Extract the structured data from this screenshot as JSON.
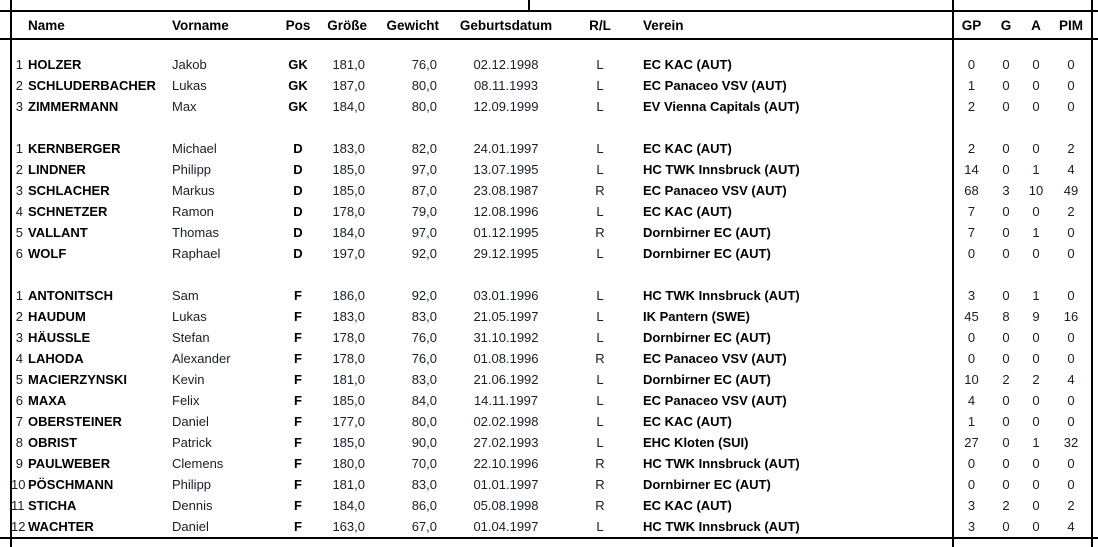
{
  "colors": {
    "border": "#000000",
    "text": "#181d29",
    "bold_text": "#000000",
    "background": "#ffffff"
  },
  "table": {
    "header": {
      "num": "",
      "name": "Name",
      "vorname": "Vorname",
      "pos": "Pos",
      "groesse": "Größe",
      "gewicht": "Gewicht",
      "geburtsdatum": "Geburtsdatum",
      "rl": "R/L",
      "verein": "Verein",
      "gp": "GP",
      "g": "G",
      "a": "A",
      "pim": "PIM"
    },
    "sections": [
      {
        "position_group": "GK",
        "rows": [
          {
            "num": "1",
            "name": "HOLZER",
            "vorname": "Jakob",
            "pos": "GK",
            "groesse": "181,0",
            "gewicht": "76,0",
            "geburtsdatum": "02.12.1998",
            "rl": "L",
            "verein": "EC KAC (AUT)",
            "gp": "0",
            "g": "0",
            "a": "0",
            "pim": "0"
          },
          {
            "num": "2",
            "name": "SCHLUDERBACHER",
            "vorname": "Lukas",
            "pos": "GK",
            "groesse": "187,0",
            "gewicht": "80,0",
            "geburtsdatum": "08.11.1993",
            "rl": "L",
            "verein": "EC Panaceo VSV (AUT)",
            "gp": "1",
            "g": "0",
            "a": "0",
            "pim": "0"
          },
          {
            "num": "3",
            "name": "ZIMMERMANN",
            "vorname": "Max",
            "pos": "GK",
            "groesse": "184,0",
            "gewicht": "80,0",
            "geburtsdatum": "12.09.1999",
            "rl": "L",
            "verein": "EV Vienna Capitals (AUT)",
            "gp": "2",
            "g": "0",
            "a": "0",
            "pim": "0"
          }
        ]
      },
      {
        "position_group": "D",
        "rows": [
          {
            "num": "1",
            "name": "KERNBERGER",
            "vorname": "Michael",
            "pos": "D",
            "groesse": "183,0",
            "gewicht": "82,0",
            "geburtsdatum": "24.01.1997",
            "rl": "L",
            "verein": "EC KAC (AUT)",
            "gp": "2",
            "g": "0",
            "a": "0",
            "pim": "2"
          },
          {
            "num": "2",
            "name": "LINDNER",
            "vorname": "Philipp",
            "pos": "D",
            "groesse": "185,0",
            "gewicht": "97,0",
            "geburtsdatum": "13.07.1995",
            "rl": "L",
            "verein": "HC TWK Innsbruck (AUT)",
            "gp": "14",
            "g": "0",
            "a": "1",
            "pim": "4"
          },
          {
            "num": "3",
            "name": "SCHLACHER",
            "vorname": "Markus",
            "pos": "D",
            "groesse": "185,0",
            "gewicht": "87,0",
            "geburtsdatum": "23.08.1987",
            "rl": "R",
            "verein": "EC Panaceo VSV (AUT)",
            "gp": "68",
            "g": "3",
            "a": "10",
            "pim": "49"
          },
          {
            "num": "4",
            "name": "SCHNETZER",
            "vorname": "Ramon",
            "pos": "D",
            "groesse": "178,0",
            "gewicht": "79,0",
            "geburtsdatum": "12.08.1996",
            "rl": "L",
            "verein": "EC KAC (AUT)",
            "gp": "7",
            "g": "0",
            "a": "0",
            "pim": "2"
          },
          {
            "num": "5",
            "name": "VALLANT",
            "vorname": "Thomas",
            "pos": "D",
            "groesse": "184,0",
            "gewicht": "97,0",
            "geburtsdatum": "01.12.1995",
            "rl": "R",
            "verein": "Dornbirner EC (AUT)",
            "gp": "7",
            "g": "0",
            "a": "1",
            "pim": "0"
          },
          {
            "num": "6",
            "name": "WOLF",
            "vorname": "Raphael",
            "pos": "D",
            "groesse": "197,0",
            "gewicht": "92,0",
            "geburtsdatum": "29.12.1995",
            "rl": "L",
            "verein": "Dornbirner EC (AUT)",
            "gp": "0",
            "g": "0",
            "a": "0",
            "pim": "0"
          }
        ]
      },
      {
        "position_group": "F",
        "rows": [
          {
            "num": "1",
            "name": "ANTONITSCH",
            "vorname": "Sam",
            "pos": "F",
            "groesse": "186,0",
            "gewicht": "92,0",
            "geburtsdatum": "03.01.1996",
            "rl": "L",
            "verein": "HC TWK Innsbruck (AUT)",
            "gp": "3",
            "g": "0",
            "a": "1",
            "pim": "0"
          },
          {
            "num": "2",
            "name": "HAUDUM",
            "vorname": "Lukas",
            "pos": "F",
            "groesse": "183,0",
            "gewicht": "83,0",
            "geburtsdatum": "21.05.1997",
            "rl": "L",
            "verein": "IK Pantern (SWE)",
            "gp": "45",
            "g": "8",
            "a": "9",
            "pim": "16"
          },
          {
            "num": "3",
            "name": "HÄUSSLE",
            "vorname": "Stefan",
            "pos": "F",
            "groesse": "178,0",
            "gewicht": "76,0",
            "geburtsdatum": "31.10.1992",
            "rl": "L",
            "verein": "Dornbirner EC (AUT)",
            "gp": "0",
            "g": "0",
            "a": "0",
            "pim": "0"
          },
          {
            "num": "4",
            "name": "LAHODA",
            "vorname": "Alexander",
            "pos": "F",
            "groesse": "178,0",
            "gewicht": "76,0",
            "geburtsdatum": "01.08.1996",
            "rl": "R",
            "verein": "EC Panaceo VSV (AUT)",
            "gp": "0",
            "g": "0",
            "a": "0",
            "pim": "0"
          },
          {
            "num": "5",
            "name": "MACIERZYNSKI",
            "vorname": "Kevin",
            "pos": "F",
            "groesse": "181,0",
            "gewicht": "83,0",
            "geburtsdatum": "21.06.1992",
            "rl": "L",
            "verein": "Dornbirner EC (AUT)",
            "gp": "10",
            "g": "2",
            "a": "2",
            "pim": "4"
          },
          {
            "num": "6",
            "name": "MAXA",
            "vorname": "Felix",
            "pos": "F",
            "groesse": "185,0",
            "gewicht": "84,0",
            "geburtsdatum": "14.11.1997",
            "rl": "L",
            "verein": "EC Panaceo VSV (AUT)",
            "gp": "4",
            "g": "0",
            "a": "0",
            "pim": "0"
          },
          {
            "num": "7",
            "name": "OBERSTEINER",
            "vorname": "Daniel",
            "pos": "F",
            "groesse": "177,0",
            "gewicht": "80,0",
            "geburtsdatum": "02.02.1998",
            "rl": "L",
            "verein": "EC KAC (AUT)",
            "gp": "1",
            "g": "0",
            "a": "0",
            "pim": "0"
          },
          {
            "num": "8",
            "name": "OBRIST",
            "vorname": "Patrick",
            "pos": "F",
            "groesse": "185,0",
            "gewicht": "90,0",
            "geburtsdatum": "27.02.1993",
            "rl": "L",
            "verein": "EHC Kloten (SUI)",
            "gp": "27",
            "g": "0",
            "a": "1",
            "pim": "32"
          },
          {
            "num": "9",
            "name": "PAULWEBER",
            "vorname": "Clemens",
            "pos": "F",
            "groesse": "180,0",
            "gewicht": "70,0",
            "geburtsdatum": "22.10.1996",
            "rl": "R",
            "verein": "HC TWK Innsbruck (AUT)",
            "gp": "0",
            "g": "0",
            "a": "0",
            "pim": "0"
          },
          {
            "num": "10",
            "name": "PÖSCHMANN",
            "vorname": "Philipp",
            "pos": "F",
            "groesse": "181,0",
            "gewicht": "83,0",
            "geburtsdatum": "01.01.1997",
            "rl": "R",
            "verein": "Dornbirner EC (AUT)",
            "gp": "0",
            "g": "0",
            "a": "0",
            "pim": "0"
          },
          {
            "num": "11",
            "name": "STICHA",
            "vorname": "Dennis",
            "pos": "F",
            "groesse": "184,0",
            "gewicht": "86,0",
            "geburtsdatum": "05.08.1998",
            "rl": "R",
            "verein": "EC KAC (AUT)",
            "gp": "3",
            "g": "2",
            "a": "0",
            "pim": "2"
          },
          {
            "num": "12",
            "name": "WACHTER",
            "vorname": "Daniel",
            "pos": "F",
            "groesse": "163,0",
            "gewicht": "67,0",
            "geburtsdatum": "01.04.1997",
            "rl": "L",
            "verein": "HC TWK Innsbruck (AUT)",
            "gp": "3",
            "g": "0",
            "a": "0",
            "pim": "4"
          }
        ]
      }
    ]
  }
}
